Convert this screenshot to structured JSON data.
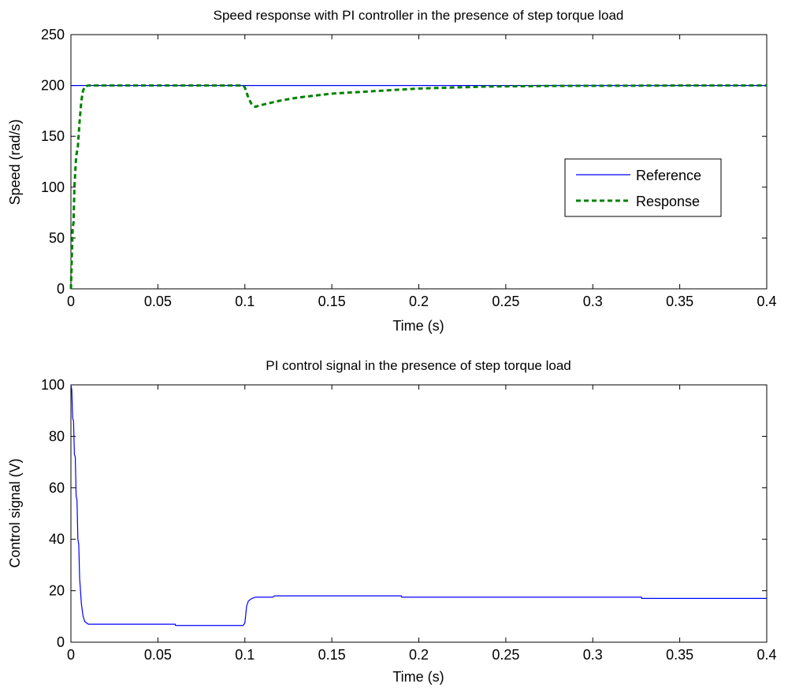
{
  "chart_data": [
    {
      "type": "line",
      "title": "Speed response with PI controller in the presence of step torque load",
      "xlabel": "Time (s)",
      "ylabel": "Speed (rad/s)",
      "xlim": [
        0,
        0.4
      ],
      "ylim": [
        0,
        250
      ],
      "xticks": [
        "0",
        "0.05",
        "0.1",
        "0.15",
        "0.2",
        "0.25",
        "0.3",
        "0.35",
        "0.4"
      ],
      "yticks": [
        "0",
        "50",
        "100",
        "150",
        "200",
        "250"
      ],
      "grid": false,
      "legend": "center-right",
      "series": [
        {
          "name": "Reference",
          "color": "#0000ff",
          "style": "solid",
          "x": [
            0,
            0.4
          ],
          "y": [
            200,
            200
          ]
        },
        {
          "name": "Response",
          "color": "#008000",
          "style": "dashed",
          "x": [
            0,
            0.0005,
            0.001,
            0.0015,
            0.002,
            0.003,
            0.004,
            0.005,
            0.006,
            0.007,
            0.008,
            0.01,
            0.02,
            0.05,
            0.099,
            0.1,
            0.102,
            0.104,
            0.106,
            0.11,
            0.12,
            0.13,
            0.14,
            0.15,
            0.16,
            0.17,
            0.18,
            0.2,
            0.22,
            0.24,
            0.28,
            0.32,
            0.36,
            0.4
          ],
          "y": [
            0,
            30,
            60,
            65,
            100,
            130,
            140,
            165,
            185,
            195,
            199,
            200,
            200,
            200,
            200,
            198,
            188,
            181,
            179,
            181,
            185,
            188,
            190,
            192,
            193,
            194,
            195,
            197,
            198,
            199,
            199.6,
            199.8,
            200,
            200
          ]
        }
      ]
    },
    {
      "type": "line",
      "title": "PI control signal in the presence of step torque load",
      "xlabel": "Time (s)",
      "ylabel": "Control signal (V)",
      "xlim": [
        0,
        0.4
      ],
      "ylim": [
        0,
        100
      ],
      "xticks": [
        "0",
        "0.05",
        "0.1",
        "0.15",
        "0.2",
        "0.25",
        "0.3",
        "0.35",
        "0.4"
      ],
      "yticks": [
        "0",
        "20",
        "40",
        "60",
        "80",
        "100"
      ],
      "grid": false,
      "series": [
        {
          "color": "#0000ff",
          "style": "solid",
          "x": [
            0,
            0.0005,
            0.001,
            0.0015,
            0.002,
            0.0025,
            0.003,
            0.0035,
            0.004,
            0.0045,
            0.005,
            0.006,
            0.007,
            0.008,
            0.009,
            0.01,
            0.012,
            0.06,
            0.0601,
            0.099,
            0.1,
            0.101,
            0.102,
            0.104,
            0.106,
            0.108,
            0.116,
            0.117,
            0.19,
            0.1901,
            0.328,
            0.3281,
            0.4
          ],
          "y": [
            100,
            98,
            87,
            86,
            73,
            72,
            57,
            55,
            40,
            38,
            25,
            15,
            10,
            8,
            7.5,
            7,
            7,
            7,
            6.5,
            6.5,
            7.5,
            14,
            16,
            17,
            17.5,
            17.5,
            17.5,
            18,
            18,
            17.5,
            17.5,
            17,
            17
          ]
        }
      ]
    }
  ]
}
